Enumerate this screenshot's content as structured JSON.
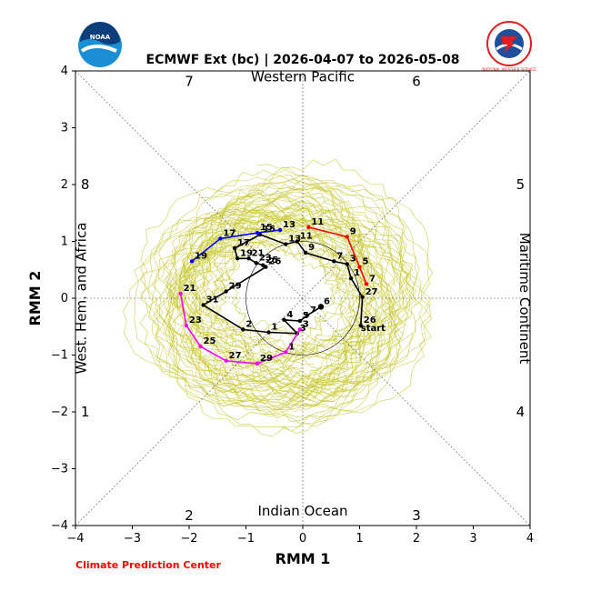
{
  "chart_data": {
    "type": "line",
    "title": "ECMWF Ext (bc) | 2026-04-07 to 2026-05-08",
    "xlabel": "RMM 1",
    "ylabel": "RMM 2",
    "xlim": [
      -4,
      4
    ],
    "ylim": [
      -4,
      4
    ],
    "xticks": [
      "−4",
      "−3",
      "−2",
      "−1",
      "0",
      "1",
      "2",
      "3",
      "4"
    ],
    "yticks": [
      "−4",
      "−3",
      "−2",
      "−1",
      "0",
      "1",
      "2",
      "3",
      "4"
    ],
    "regions": {
      "top": "Western Pacific",
      "bottom": "Indian Ocean",
      "left": "West. Hem. and Africa",
      "right": "Maritime Continent"
    },
    "phases": [
      {
        "label": "7",
        "x": -2,
        "y": 3.82
      },
      {
        "label": "6",
        "x": 2,
        "y": 3.82
      },
      {
        "label": "8",
        "x": -3.83,
        "y": 2
      },
      {
        "label": "5",
        "x": 3.83,
        "y": 2
      },
      {
        "label": "1",
        "x": -3.83,
        "y": -2
      },
      {
        "label": "4",
        "x": 3.83,
        "y": -2
      },
      {
        "label": "2",
        "x": -2,
        "y": -3.82
      },
      {
        "label": "3",
        "x": 2,
        "y": -3.82
      }
    ],
    "series": [
      {
        "name": "Observed (black)",
        "color": "#000000",
        "start_label": "start",
        "points": [
          {
            "label": "26",
            "x": 1.02,
            "y": -0.48
          },
          {
            "label": "27",
            "x": 1.05,
            "y": 0.02
          },
          {
            "label": "1",
            "x": 0.85,
            "y": 0.35
          },
          {
            "label": "3",
            "x": 0.78,
            "y": 0.6
          },
          {
            "label": "7",
            "x": 0.55,
            "y": 0.65
          },
          {
            "label": "9",
            "x": 0.05,
            "y": 0.8
          },
          {
            "label": "11",
            "x": -0.1,
            "y": 1.0
          },
          {
            "label": "13",
            "x": -0.3,
            "y": 0.95
          },
          {
            "label": "15",
            "x": -0.75,
            "y": 1.12
          },
          {
            "label": "17",
            "x": -1.2,
            "y": 0.88
          },
          {
            "label": "19",
            "x": -1.15,
            "y": 0.7
          },
          {
            "label": "21",
            "x": -0.95,
            "y": 0.7
          },
          {
            "label": "23",
            "x": -0.82,
            "y": 0.62
          },
          {
            "label": "25",
            "x": -0.7,
            "y": 0.58
          },
          {
            "label": "26",
            "x": -0.65,
            "y": 0.55
          },
          {
            "label": "29",
            "x": -1.35,
            "y": 0.12
          },
          {
            "label": "31",
            "x": -1.75,
            "y": -0.12
          },
          {
            "label": "2",
            "x": -1.05,
            "y": -0.55
          },
          {
            "label": "1",
            "x": -0.6,
            "y": -0.6
          },
          {
            "label": "3",
            "x": -0.1,
            "y": -0.62
          },
          {
            "label": "4",
            "x": -0.33,
            "y": -0.38
          },
          {
            "label": "5",
            "x": -0.05,
            "y": -0.4
          },
          {
            "label": "7",
            "x": 0.08,
            "y": -0.3
          },
          {
            "label": "6",
            "x": 0.32,
            "y": -0.15
          }
        ]
      },
      {
        "name": "Forecast week 1 (red)",
        "color": "#ff0000",
        "points": [
          {
            "label": "7",
            "x": 1.12,
            "y": 0.25
          },
          {
            "label": "5",
            "x": 1.0,
            "y": 0.55
          },
          {
            "label": "9",
            "x": 0.78,
            "y": 1.08
          },
          {
            "label": "11",
            "x": 0.1,
            "y": 1.25
          }
        ]
      },
      {
        "name": "Forecast week 2 (blue)",
        "color": "#0000ff",
        "points": [
          {
            "label": "13",
            "x": -0.4,
            "y": 1.2
          },
          {
            "label": "15",
            "x": -0.8,
            "y": 1.15
          },
          {
            "label": "17",
            "x": -1.45,
            "y": 1.05
          },
          {
            "label": "19",
            "x": -1.95,
            "y": 0.65
          }
        ]
      },
      {
        "name": "Forecast week 3 (magenta)",
        "color": "#ff00ff",
        "points": [
          {
            "label": "21",
            "x": -2.15,
            "y": 0.08
          },
          {
            "label": "23",
            "x": -2.05,
            "y": -0.48
          },
          {
            "label": "25",
            "x": -1.8,
            "y": -0.85
          },
          {
            "label": "27",
            "x": -1.35,
            "y": -1.1
          },
          {
            "label": "29",
            "x": -0.8,
            "y": -1.15
          },
          {
            "label": "1",
            "x": -0.3,
            "y": -0.95
          },
          {
            "label": "3",
            "x": -0.05,
            "y": -0.55
          }
        ]
      }
    ],
    "ensemble": {
      "color": "#c8c832",
      "members": 51,
      "note": "ensemble member trajectories"
    }
  },
  "footer": "Climate Prediction Center",
  "logos": {
    "left": "NOAA",
    "right": "NATIONAL WEATHER SERVICE"
  }
}
